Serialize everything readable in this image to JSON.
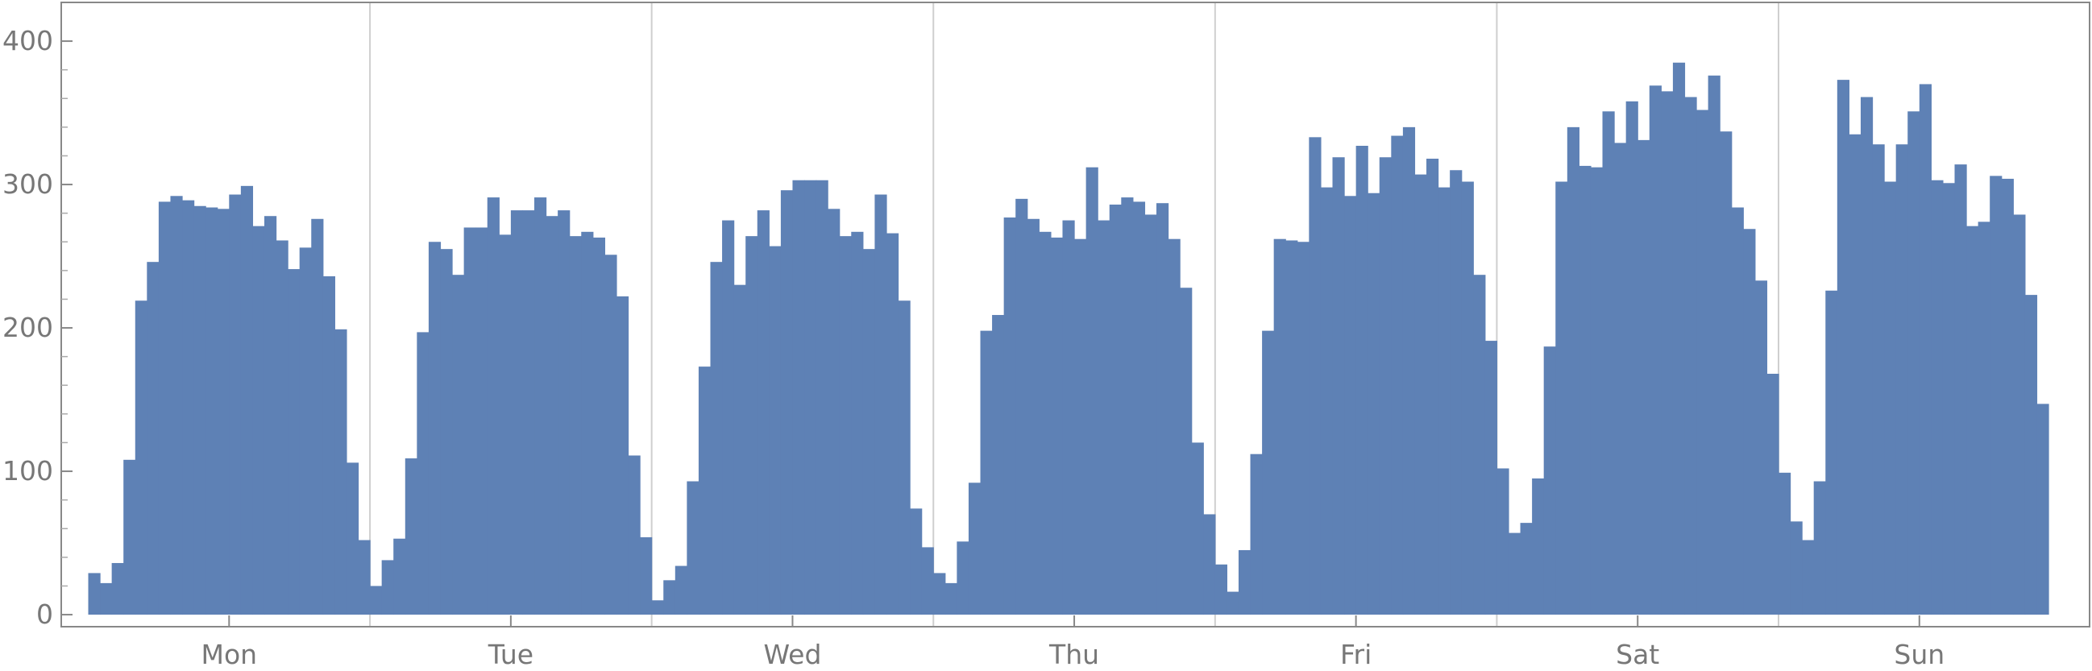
{
  "chart_data": {
    "type": "histogram",
    "color": "#5e81b5",
    "bins": [
      0,
      1,
      2,
      3,
      4,
      5,
      6,
      7,
      8,
      9,
      10,
      11,
      12,
      13,
      14,
      15,
      16,
      17,
      18,
      19,
      20,
      21,
      22,
      23,
      24,
      25,
      26,
      27,
      28,
      29,
      30,
      31,
      32,
      33,
      34,
      35,
      36,
      37,
      38,
      39,
      40,
      41,
      42,
      43,
      44,
      45,
      46,
      47,
      48,
      49,
      50,
      51,
      52,
      53,
      54,
      55,
      56,
      57,
      58,
      59,
      60,
      61,
      62,
      63,
      64,
      65,
      66,
      67,
      68,
      69,
      70,
      71,
      72,
      73,
      74,
      75,
      76,
      77,
      78,
      79,
      80,
      81,
      82,
      83,
      84,
      85,
      86,
      87,
      88,
      89,
      90,
      91,
      92,
      93,
      94,
      95,
      96,
      97,
      98,
      99,
      100,
      101,
      102,
      103,
      104,
      105,
      106,
      107,
      108,
      109,
      110,
      111,
      112,
      113,
      114,
      115,
      116,
      117,
      118,
      119,
      120,
      121,
      122,
      123,
      124,
      125,
      126,
      127,
      128,
      129,
      130,
      131,
      132,
      133,
      134,
      135,
      136,
      137,
      138,
      139,
      140,
      141,
      142,
      143,
      144,
      145,
      146,
      147,
      148,
      149,
      150,
      151,
      152,
      153,
      154,
      155,
      156,
      157,
      158,
      159,
      160,
      161,
      162,
      163,
      164,
      165,
      166,
      167
    ],
    "counts": [
      29,
      22,
      36,
      108,
      219,
      246,
      288,
      292,
      289,
      285,
      284,
      283,
      293,
      299,
      271,
      278,
      261,
      241,
      256,
      276,
      236,
      199,
      106,
      52,
      20,
      38,
      53,
      109,
      197,
      260,
      255,
      237,
      270,
      270,
      291,
      265,
      282,
      282,
      291,
      278,
      282,
      264,
      267,
      263,
      251,
      222,
      111,
      54,
      10,
      24,
      34,
      93,
      173,
      246,
      275,
      230,
      264,
      282,
      257,
      296,
      303,
      303,
      303,
      283,
      264,
      267,
      255,
      293,
      266,
      219,
      74,
      47,
      29,
      22,
      51,
      92,
      198,
      209,
      277,
      290,
      276,
      267,
      263,
      275,
      262,
      312,
      275,
      286,
      291,
      288,
      279,
      287,
      262,
      228,
      120,
      70,
      35,
      16,
      45,
      112,
      198,
      262,
      261,
      260,
      333,
      298,
      319,
      292,
      327,
      294,
      319,
      334,
      340,
      307,
      318,
      298,
      310,
      302,
      237,
      191,
      102,
      57,
      64,
      95,
      187,
      302,
      340,
      313,
      312,
      351,
      329,
      358,
      331,
      369,
      365,
      385,
      361,
      352,
      376,
      337,
      284,
      269,
      233,
      168,
      99,
      65,
      52,
      93,
      226,
      373,
      335,
      361,
      328,
      302,
      328,
      351,
      370,
      303,
      301,
      314,
      271,
      274,
      306,
      304,
      279,
      223,
      147
    ],
    "xlim": [
      -2.3,
      170.5
    ],
    "xticks": [
      {
        "value": 12,
        "label": "Mon"
      },
      {
        "value": 36,
        "label": "Tue"
      },
      {
        "value": 60,
        "label": "Wed"
      },
      {
        "value": 84,
        "label": "Thu"
      },
      {
        "value": 108,
        "label": "Fri"
      },
      {
        "value": 132,
        "label": "Sat"
      },
      {
        "value": 156,
        "label": "Sun"
      }
    ],
    "xgrid": [
      24,
      48,
      72,
      96,
      120,
      144
    ],
    "ylim": [
      -8.4,
      427
    ],
    "yticks": [
      0,
      100,
      200,
      300,
      400
    ]
  }
}
